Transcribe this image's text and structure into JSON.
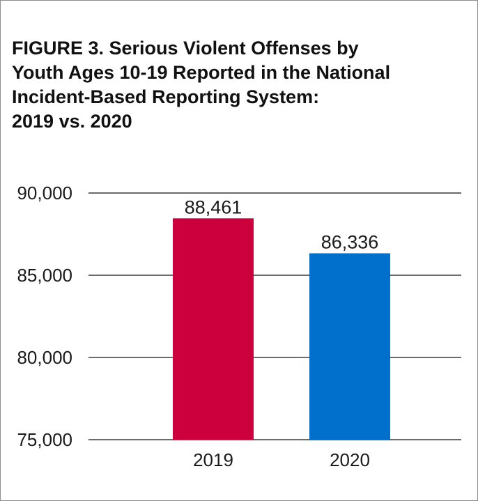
{
  "title_lines": [
    "FIGURE 3. Serious Violent Offenses by",
    "Youth Ages 10-19 Reported in the National",
    "Incident-Based Reporting System:",
    "2019 vs. 2020"
  ],
  "chart_data": {
    "type": "bar",
    "title": "FIGURE 3. Serious Violent Offenses by Youth Ages 10-19 Reported in the National Incident-Based Reporting System: 2019 vs. 2020",
    "categories": [
      "2019",
      "2020"
    ],
    "values": [
      88461,
      86336
    ],
    "data_labels": [
      "88,461",
      "86,336"
    ],
    "colors": [
      "#cc003d",
      "#0070cc"
    ],
    "xlabel": "",
    "ylabel": "",
    "ylim": [
      75000,
      90000
    ],
    "yticks": [
      75000,
      80000,
      85000,
      90000
    ],
    "ytick_labels": [
      "75,000",
      "80,000",
      "85,000",
      "90,000"
    ],
    "grid": true,
    "legend": "none"
  }
}
